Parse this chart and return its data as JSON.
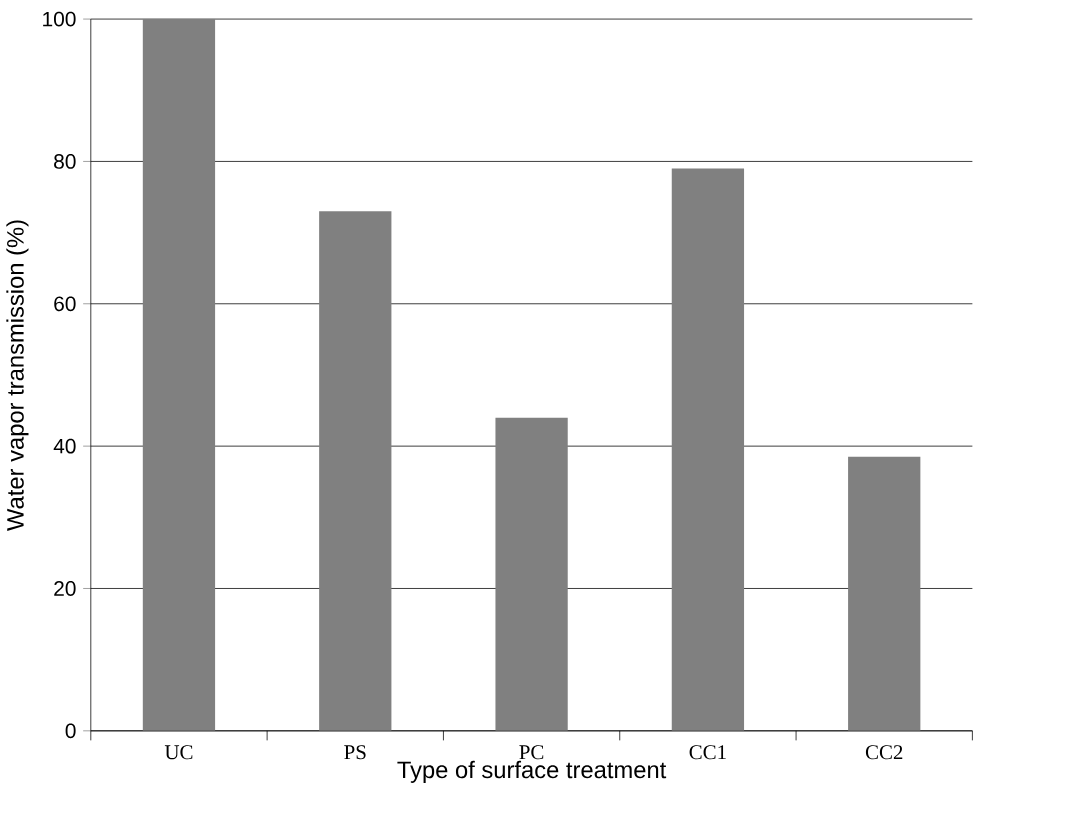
{
  "chart_data": {
    "type": "bar",
    "xlabel": "Type of surface treatment",
    "ylabel": "Water vapor transmission (%)",
    "categories": [
      "UC",
      "PS",
      "PC",
      "CC1",
      "CC2"
    ],
    "values": [
      100,
      73,
      44,
      79,
      38.5
    ],
    "color": "#808080",
    "ylim": [
      0,
      100
    ],
    "yticks": [
      0,
      20,
      40,
      60,
      80,
      100
    ],
    "grid": "y"
  }
}
